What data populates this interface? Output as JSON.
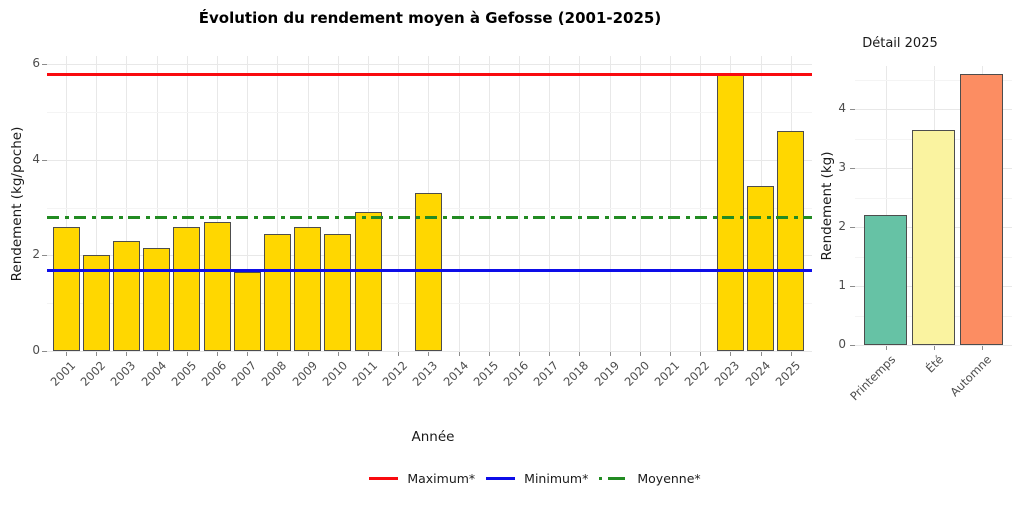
{
  "colors": {
    "background": "#FFFFFF",
    "grid_major": "#E8E8E8",
    "grid_minor": "#F4F4F4",
    "tick_mark": "#8C8C8C",
    "tick_text": "#4D4D4D",
    "axis_title": "#1A1A1A"
  },
  "chart_data": [
    {
      "id": "main",
      "type": "bar",
      "title": "Évolution du rendement moyen à Gefosse (2001-2025)",
      "xlabel": "Année",
      "ylabel": "Rendement (kg/poche)",
      "ylim": [
        0,
        6
      ],
      "yticks": [
        0,
        2,
        4,
        6
      ],
      "yticks_minor": [
        1,
        3,
        5
      ],
      "grid": true,
      "legend_position": "bottom",
      "bar_fill": "#FFD700",
      "bar_border": "#4D4D4D",
      "categories": [
        "2001",
        "2002",
        "2003",
        "2004",
        "2005",
        "2006",
        "2007",
        "2008",
        "2009",
        "2010",
        "2011",
        "2012",
        "2013",
        "2014",
        "2015",
        "2016",
        "2017",
        "2018",
        "2019",
        "2020",
        "2021",
        "2022",
        "2023",
        "2024",
        "2025"
      ],
      "values": [
        2.6,
        2.0,
        2.3,
        2.15,
        2.6,
        2.7,
        1.65,
        2.45,
        2.6,
        2.45,
        2.9,
        null,
        3.3,
        null,
        null,
        null,
        null,
        null,
        null,
        null,
        null,
        null,
        5.8,
        3.45,
        4.6
      ],
      "ref_lines": [
        {
          "label": "Maximum*",
          "value": 5.8,
          "color": "#F90A0F",
          "style": "solid"
        },
        {
          "label": "Minimum*",
          "value": 1.7,
          "color": "#0D0DE8",
          "style": "solid"
        },
        {
          "label": "Moyenne*",
          "value": 2.8,
          "color": "#228B22",
          "style": "dashdot"
        }
      ]
    },
    {
      "id": "detail",
      "type": "bar",
      "title": "Détail 2025",
      "xlabel": "",
      "ylabel": "Rendement (kg)",
      "ylim": [
        0,
        4.7
      ],
      "yticks": [
        0,
        1,
        2,
        3,
        4
      ],
      "yticks_minor": [
        0.5,
        1.5,
        2.5,
        3.5,
        4.5
      ],
      "grid": true,
      "bar_border": "#4D4D4D",
      "categories": [
        "Printemps",
        "Été",
        "Automne"
      ],
      "values": [
        2.2,
        3.65,
        4.6
      ],
      "bar_fills": [
        "#66C2A5",
        "#FAF3A0",
        "#FC8D62"
      ]
    }
  ]
}
